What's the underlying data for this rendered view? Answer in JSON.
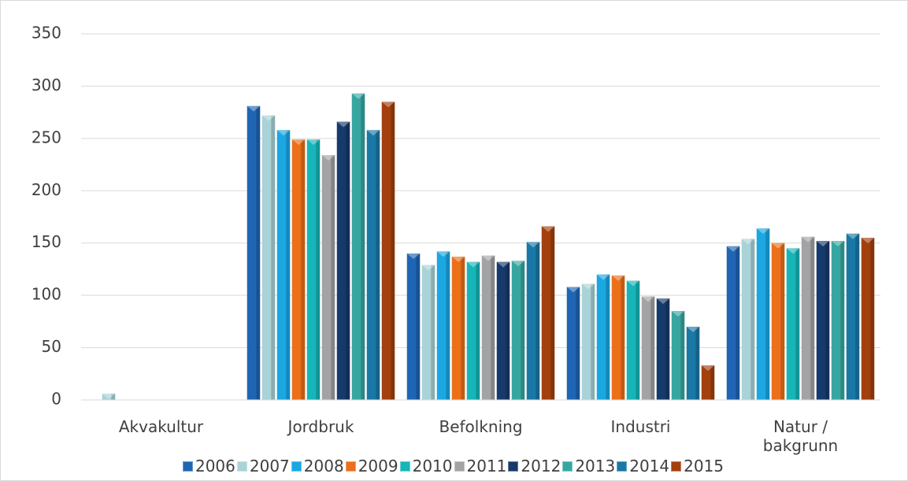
{
  "chart_data": {
    "type": "bar",
    "categories": [
      "Akvakultur",
      "Jordbruk",
      "Befolkning",
      "Industri",
      "Natur / bakgrunn"
    ],
    "ylim": [
      0,
      350
    ],
    "yticks": [
      0,
      50,
      100,
      150,
      200,
      250,
      300,
      350
    ],
    "grid": true,
    "legend": "bottom",
    "series": [
      {
        "name": "2006",
        "color": "#1f65b4",
        "values": [
          null,
          281,
          140,
          108,
          147
        ]
      },
      {
        "name": "2007",
        "color": "#a9d3d6",
        "values": [
          6,
          272,
          129,
          111,
          154
        ]
      },
      {
        "name": "2008",
        "color": "#1ba7e2",
        "values": [
          null,
          258,
          142,
          120,
          164
        ]
      },
      {
        "name": "2009",
        "color": "#ec6f1a",
        "values": [
          null,
          249,
          137,
          119,
          150
        ]
      },
      {
        "name": "2010",
        "color": "#17b5b8",
        "values": [
          null,
          249,
          132,
          114,
          145
        ]
      },
      {
        "name": "2011",
        "color": "#a3a3a5",
        "values": [
          null,
          234,
          138,
          99,
          156
        ]
      },
      {
        "name": "2012",
        "color": "#163a6b",
        "values": [
          null,
          266,
          132,
          97,
          152
        ]
      },
      {
        "name": "2013",
        "color": "#37a6a0",
        "values": [
          null,
          293,
          133,
          85,
          152
        ]
      },
      {
        "name": "2014",
        "color": "#1a78a6",
        "values": [
          null,
          258,
          151,
          70,
          159
        ]
      },
      {
        "name": "2015",
        "color": "#a3400d",
        "values": [
          null,
          285,
          166,
          33,
          155
        ]
      }
    ]
  }
}
